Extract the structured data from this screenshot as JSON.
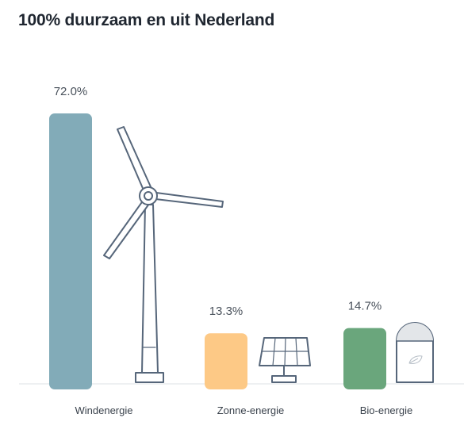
{
  "title": "100% duurzaam en uit Nederland",
  "chart_data": {
    "type": "bar",
    "categories": [
      "Windenergie",
      "Zonne-energie",
      "Bio-energie"
    ],
    "values": [
      72.0,
      13.3,
      14.7
    ],
    "value_labels": [
      "72.0%",
      "13.3%",
      "14.7%"
    ],
    "bar_colors": [
      "#82abb8",
      "#fdc986",
      "#6aa67c"
    ],
    "icons": [
      "wind-turbine-icon",
      "solar-panel-icon",
      "bio-silo-icon"
    ],
    "ylim": [
      0,
      72
    ],
    "grid": false,
    "legend": "none"
  }
}
